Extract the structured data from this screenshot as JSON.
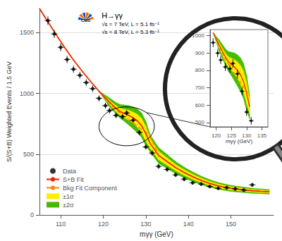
{
  "chart_data": [
    {
      "type": "line",
      "xlabel": "mγγ (GeV)",
      "ylabel": "S/(S+B) Weighted Events / 1.5 GeV",
      "xlim": [
        105,
        160
      ],
      "ylim": [
        0,
        1700
      ],
      "xticks": [
        110,
        120,
        130,
        140,
        150
      ],
      "yticks": [
        0,
        500,
        1000,
        1500
      ],
      "grid": true,
      "legend": "lower left",
      "annotations": [
        "H→γγ",
        "√s = 7 TeV, L = 5.1 fb⁻¹",
        "√s = 8 TeV, L = 5.3 fb⁻¹"
      ],
      "logo_text": "CMS",
      "ellipse": {
        "x": 125.5,
        "y": 730,
        "width": 13,
        "height": 320
      },
      "series": [
        {
          "name": "Data",
          "type": "scatter",
          "marker": "circle",
          "color": "#000000",
          "x": [
            107,
            108.5,
            110,
            111.5,
            113,
            114.5,
            116,
            117.5,
            119,
            120.5,
            121.5,
            123,
            124.5,
            125.5,
            127,
            128.5,
            130,
            131.5,
            133,
            135,
            137,
            139,
            141,
            143,
            145,
            147,
            149,
            151,
            153,
            155
          ],
          "values": [
            1600,
            1490,
            1380,
            1280,
            1200,
            1150,
            1090,
            1040,
            960,
            900,
            860,
            820,
            810,
            840,
            780,
            680,
            560,
            510,
            400,
            375,
            330,
            295,
            265,
            255,
            235,
            220,
            225,
            215,
            205,
            248
          ],
          "yerr": [
            35,
            33,
            32,
            30,
            29,
            28,
            27,
            26,
            25,
            24,
            24,
            23,
            23,
            24,
            24,
            23,
            22,
            22,
            20,
            19,
            18,
            17,
            16,
            16,
            15,
            15,
            15,
            15,
            14,
            16
          ],
          "xerr": 0.75
        },
        {
          "name": "S+B Fit",
          "type": "line",
          "line_style": "solid",
          "color": "#ee2200",
          "x": [
            105,
            107,
            109,
            111,
            113,
            115,
            117,
            119,
            121,
            123,
            124,
            125,
            126,
            127,
            128,
            129,
            130,
            131,
            133,
            135,
            137,
            139,
            141,
            143,
            145,
            147,
            149,
            151,
            153,
            155,
            157,
            159
          ],
          "values": [
            1700,
            1590,
            1480,
            1375,
            1275,
            1185,
            1100,
            1018,
            945,
            878,
            850,
            835,
            820,
            800,
            775,
            735,
            670,
            590,
            490,
            440,
            390,
            350,
            315,
            285,
            260,
            240,
            225,
            215,
            207,
            200,
            195,
            191
          ]
        },
        {
          "name": "Bkg Fit Component",
          "type": "line",
          "line_style": "dashed",
          "color": "#ff8800",
          "x": [
            105,
            107,
            109,
            111,
            113,
            115,
            117,
            119,
            121,
            123,
            124,
            125,
            126,
            127,
            128,
            129,
            130,
            131,
            133,
            135,
            137,
            139,
            141,
            143,
            145,
            147,
            149,
            151,
            153,
            155,
            157,
            159
          ],
          "values": [
            1700,
            1590,
            1480,
            1375,
            1275,
            1185,
            1100,
            1018,
            938,
            865,
            838,
            810,
            782,
            756,
            730,
            704,
            680,
            656,
            490,
            440,
            390,
            350,
            315,
            285,
            260,
            240,
            225,
            215,
            207,
            200,
            195,
            191
          ]
        },
        {
          "name": "±1σ",
          "type": "band",
          "color": "#ffee00",
          "x": [
            105,
            107,
            109,
            111,
            113,
            115,
            117,
            119,
            121,
            123,
            124,
            125,
            126,
            127,
            128,
            129,
            130,
            131,
            133,
            135,
            137,
            139,
            141,
            143,
            145,
            147,
            149,
            151,
            153,
            155,
            157,
            159
          ],
          "lower": [
            1700,
            1590,
            1480,
            1375,
            1275,
            1185,
            1100,
            1018,
            930,
            850,
            820,
            800,
            778,
            755,
            722,
            675,
            610,
            550,
            455,
            410,
            365,
            327,
            295,
            267,
            244,
            225,
            211,
            202,
            195,
            189,
            185,
            181
          ],
          "upper": [
            1700,
            1590,
            1480,
            1375,
            1275,
            1185,
            1100,
            1018,
            958,
            900,
            878,
            870,
            862,
            848,
            828,
            795,
            730,
            630,
            525,
            470,
            415,
            373,
            335,
            303,
            276,
            255,
            239,
            228,
            219,
            211,
            205,
            201
          ]
        },
        {
          "name": "±2σ",
          "type": "band",
          "color": "#44bb00",
          "x": [
            105,
            107,
            109,
            111,
            113,
            115,
            117,
            119,
            121,
            123,
            124,
            125,
            126,
            127,
            128,
            129,
            130,
            131,
            133,
            135,
            137,
            139,
            141,
            143,
            145,
            147,
            149,
            151,
            153,
            155,
            157,
            159
          ],
          "lower": [
            1700,
            1590,
            1480,
            1375,
            1275,
            1185,
            1100,
            1018,
            912,
            830,
            795,
            770,
            740,
            710,
            678,
            638,
            570,
            520,
            425,
            382,
            340,
            306,
            276,
            250,
            229,
            212,
            199,
            191,
            185,
            179,
            176,
            172
          ],
          "upper": [
            1700,
            1590,
            1480,
            1375,
            1275,
            1185,
            1100,
            1018,
            975,
            925,
            908,
            905,
            900,
            890,
            872,
            840,
            770,
            660,
            555,
            498,
            440,
            394,
            354,
            320,
            291,
            268,
            251,
            239,
            229,
            221,
            214,
            210
          ]
        }
      ]
    },
    {
      "type": "line",
      "xlabel": "mγγ (GeV)",
      "xlim": [
        118,
        137
      ],
      "ylim": [
        475,
        1035
      ],
      "xticks": [
        120,
        125,
        130,
        135
      ],
      "yticks": [
        500,
        600,
        700,
        800,
        900,
        1000
      ],
      "grid": false,
      "series": [
        {
          "name": "Data",
          "type": "scatter",
          "marker": "circle",
          "color": "#000000",
          "x": [
            119,
            120.5,
            121.5,
            123,
            124.5,
            125.5,
            127,
            128.5,
            130,
            131.5
          ],
          "values": [
            960,
            900,
            860,
            820,
            810,
            840,
            780,
            680,
            560,
            510
          ],
          "yerr": [
            25,
            24,
            24,
            23,
            23,
            24,
            24,
            23,
            22,
            22
          ],
          "xerr": 0.75
        },
        {
          "name": "S+B Fit",
          "type": "line",
          "line_style": "solid",
          "color": "#ee2200",
          "x": [
            119,
            121,
            123,
            124,
            125,
            126,
            127,
            128,
            129,
            130,
            131
          ],
          "values": [
            1018,
            945,
            878,
            850,
            835,
            820,
            800,
            775,
            735,
            670,
            590
          ]
        },
        {
          "name": "Bkg Fit Component",
          "type": "line",
          "line_style": "dashed",
          "color": "#ff8800",
          "x": [
            119,
            121,
            123,
            124,
            125,
            126,
            127,
            128,
            129,
            130,
            131
          ],
          "values": [
            1018,
            938,
            865,
            838,
            810,
            782,
            756,
            730,
            704,
            680,
            656
          ]
        },
        {
          "name": "±1σ",
          "type": "band",
          "color": "#ffee00",
          "x": [
            119,
            121,
            123,
            124,
            125,
            126,
            127,
            128,
            129,
            130,
            131
          ],
          "lower": [
            1018,
            930,
            850,
            820,
            800,
            778,
            755,
            722,
            675,
            610,
            550
          ],
          "upper": [
            1018,
            958,
            900,
            878,
            870,
            862,
            848,
            828,
            795,
            730,
            630
          ]
        },
        {
          "name": "±2σ",
          "type": "band",
          "color": "#44bb00",
          "x": [
            119,
            121,
            123,
            124,
            125,
            126,
            127,
            128,
            129,
            130,
            131
          ],
          "lower": [
            1018,
            912,
            830,
            795,
            770,
            740,
            710,
            678,
            638,
            570,
            520
          ],
          "upper": [
            1018,
            975,
            925,
            908,
            905,
            900,
            890,
            872,
            840,
            770,
            660
          ]
        }
      ]
    }
  ]
}
